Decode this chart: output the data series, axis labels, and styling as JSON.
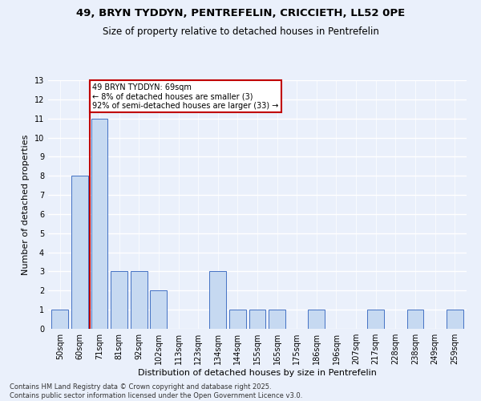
{
  "title1": "49, BRYN TYDDYN, PENTREFELIN, CRICCIETH, LL52 0PE",
  "title2": "Size of property relative to detached houses in Pentrefelin",
  "xlabel": "Distribution of detached houses by size in Pentrefelin",
  "ylabel": "Number of detached properties",
  "footer1": "Contains HM Land Registry data © Crown copyright and database right 2025.",
  "footer2": "Contains public sector information licensed under the Open Government Licence v3.0.",
  "categories": [
    "50sqm",
    "60sqm",
    "71sqm",
    "81sqm",
    "92sqm",
    "102sqm",
    "113sqm",
    "123sqm",
    "134sqm",
    "144sqm",
    "155sqm",
    "165sqm",
    "175sqm",
    "186sqm",
    "196sqm",
    "207sqm",
    "217sqm",
    "228sqm",
    "238sqm",
    "249sqm",
    "259sqm"
  ],
  "values": [
    1,
    8,
    11,
    3,
    3,
    2,
    0,
    0,
    3,
    1,
    1,
    1,
    0,
    1,
    0,
    0,
    1,
    0,
    1,
    0,
    1
  ],
  "bar_color": "#c6d9f1",
  "bar_edge_color": "#4472c4",
  "background_color": "#eaf0fb",
  "grid_color": "#ffffff",
  "vline_x": 1.5,
  "vline_color": "#c00000",
  "annotation_text": "49 BRYN TYDDYN: 69sqm\n← 8% of detached houses are smaller (3)\n92% of semi-detached houses are larger (33) →",
  "annotation_box_color": "#ffffff",
  "annotation_box_edge": "#c00000",
  "ylim": [
    0,
    13
  ],
  "yticks": [
    0,
    1,
    2,
    3,
    4,
    5,
    6,
    7,
    8,
    9,
    10,
    11,
    12,
    13
  ],
  "title_fontsize": 9.5,
  "subtitle_fontsize": 8.5,
  "annotation_fontsize": 7,
  "axis_label_fontsize": 8,
  "tick_fontsize": 7,
  "footer_fontsize": 6
}
